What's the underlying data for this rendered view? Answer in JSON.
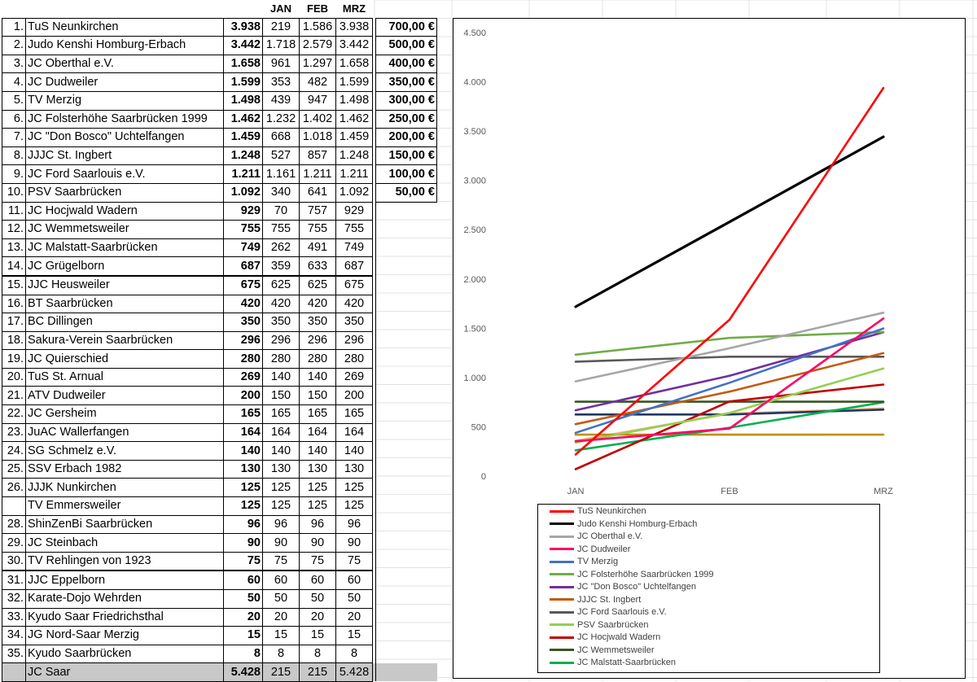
{
  "table": {
    "header": {
      "jan": "JAN",
      "feb": "FEB",
      "mrz": "MRZ"
    },
    "rows": [
      {
        "rank": "1.",
        "club": "TuS Neunkirchen",
        "total": "3.938",
        "jan": "219",
        "feb": "1.586",
        "mrz": "3.938",
        "prize": "700,00 €"
      },
      {
        "rank": "2.",
        "club": "Judo Kenshi Homburg-Erbach",
        "total": "3.442",
        "jan": "1.718",
        "feb": "2.579",
        "mrz": "3.442",
        "prize": "500,00 €"
      },
      {
        "rank": "3.",
        "club": "JC Oberthal e.V.",
        "total": "1.658",
        "jan": "961",
        "feb": "1.297",
        "mrz": "1.658",
        "prize": "400,00 €"
      },
      {
        "rank": "4.",
        "club": "JC Dudweiler",
        "total": "1.599",
        "jan": "353",
        "feb": "482",
        "mrz": "1.599",
        "prize": "350,00 €"
      },
      {
        "rank": "5.",
        "club": "TV Merzig",
        "total": "1.498",
        "jan": "439",
        "feb": "947",
        "mrz": "1.498",
        "prize": "300,00 €"
      },
      {
        "rank": "6.",
        "club": "JC Folsterhöhe Saarbrücken 1999",
        "total": "1.462",
        "jan": "1.232",
        "feb": "1.402",
        "mrz": "1.462",
        "prize": "250,00 €"
      },
      {
        "rank": "7.",
        "club": "JC \"Don Bosco\" Uchtelfangen",
        "total": "1.459",
        "jan": "668",
        "feb": "1.018",
        "mrz": "1.459",
        "prize": "200,00 €"
      },
      {
        "rank": "8.",
        "club": "JJJC St. Ingbert",
        "total": "1.248",
        "jan": "527",
        "feb": "857",
        "mrz": "1.248",
        "prize": "150,00 €"
      },
      {
        "rank": "9.",
        "club": "JC Ford Saarlouis e.V.",
        "total": "1.211",
        "jan": "1.161",
        "feb": "1.211",
        "mrz": "1.211",
        "prize": "100,00 €"
      },
      {
        "rank": "10.",
        "club": "PSV Saarbrücken",
        "total": "1.092",
        "jan": "340",
        "feb": "641",
        "mrz": "1.092",
        "prize": "50,00 €"
      },
      {
        "rank": "11.",
        "club": "JC Hocjwald Wadern",
        "total": "929",
        "jan": "70",
        "feb": "757",
        "mrz": "929",
        "prize": ""
      },
      {
        "rank": "12.",
        "club": "JC Wemmetsweiler",
        "total": "755",
        "jan": "755",
        "feb": "755",
        "mrz": "755",
        "prize": ""
      },
      {
        "rank": "13.",
        "club": "JC Malstatt-Saarbrücken",
        "total": "749",
        "jan": "262",
        "feb": "491",
        "mrz": "749",
        "prize": ""
      },
      {
        "rank": "14.",
        "club": "JC Grügelborn",
        "total": "687",
        "jan": "359",
        "feb": "633",
        "mrz": "687",
        "prize": ""
      },
      {
        "rank": "15.",
        "club": "JJC Heusweiler",
        "total": "675",
        "jan": "625",
        "feb": "625",
        "mrz": "675",
        "prize": ""
      },
      {
        "rank": "16.",
        "club": "BT Saarbrücken",
        "total": "420",
        "jan": "420",
        "feb": "420",
        "mrz": "420",
        "prize": ""
      },
      {
        "rank": "17.",
        "club": "BC Dillingen",
        "total": "350",
        "jan": "350",
        "feb": "350",
        "mrz": "350",
        "prize": ""
      },
      {
        "rank": "18.",
        "club": "Sakura-Verein Saarbrücken",
        "total": "296",
        "jan": "296",
        "feb": "296",
        "mrz": "296",
        "prize": ""
      },
      {
        "rank": "19.",
        "club": "JC Quierschied",
        "total": "280",
        "jan": "280",
        "feb": "280",
        "mrz": "280",
        "prize": ""
      },
      {
        "rank": "20.",
        "club": "TuS St. Arnual",
        "total": "269",
        "jan": "140",
        "feb": "140",
        "mrz": "269",
        "prize": ""
      },
      {
        "rank": "21.",
        "club": "ATV Dudweiler",
        "total": "200",
        "jan": "150",
        "feb": "150",
        "mrz": "200",
        "prize": ""
      },
      {
        "rank": "22.",
        "club": "JC Gersheim",
        "total": "165",
        "jan": "165",
        "feb": "165",
        "mrz": "165",
        "prize": ""
      },
      {
        "rank": "23.",
        "club": "JuAC Wallerfangen",
        "total": "164",
        "jan": "164",
        "feb": "164",
        "mrz": "164",
        "prize": ""
      },
      {
        "rank": "24.",
        "club": "SG Schmelz e.V.",
        "total": "140",
        "jan": "140",
        "feb": "140",
        "mrz": "140",
        "prize": ""
      },
      {
        "rank": "25.",
        "club": "SSV Erbach 1982",
        "total": "130",
        "jan": "130",
        "feb": "130",
        "mrz": "130",
        "prize": ""
      },
      {
        "rank": "26.",
        "club": "JJJK Nunkirchen",
        "total": "125",
        "jan": "125",
        "feb": "125",
        "mrz": "125",
        "prize": ""
      },
      {
        "rank": "",
        "club": "TV Emmersweiler",
        "total": "125",
        "jan": "125",
        "feb": "125",
        "mrz": "125",
        "prize": ""
      },
      {
        "rank": "28.",
        "club": "ShinZenBi Saarbrücken",
        "total": "96",
        "jan": "96",
        "feb": "96",
        "mrz": "96",
        "prize": ""
      },
      {
        "rank": "29.",
        "club": "JC Steinbach",
        "total": "90",
        "jan": "90",
        "feb": "90",
        "mrz": "90",
        "prize": ""
      },
      {
        "rank": "30.",
        "club": "TV Rehlingen von 1923",
        "total": "75",
        "jan": "75",
        "feb": "75",
        "mrz": "75",
        "prize": ""
      },
      {
        "rank": "31.",
        "club": "JJC Eppelborn",
        "total": "60",
        "jan": "60",
        "feb": "60",
        "mrz": "60",
        "prize": ""
      },
      {
        "rank": "32.",
        "club": "Karate-Dojo Wehrden",
        "total": "50",
        "jan": "50",
        "feb": "50",
        "mrz": "50",
        "prize": ""
      },
      {
        "rank": "33.",
        "club": "Kyudo Saar Friedrichsthal",
        "total": "20",
        "jan": "20",
        "feb": "20",
        "mrz": "20",
        "prize": ""
      },
      {
        "rank": "34.",
        "club": "JG Nord-Saar Merzig",
        "total": "15",
        "jan": "15",
        "feb": "15",
        "mrz": "15",
        "prize": ""
      },
      {
        "rank": "35.",
        "club": "Kyudo Saarbrücken",
        "total": "8",
        "jan": "8",
        "feb": "8",
        "mrz": "8",
        "prize": ""
      },
      {
        "rank": "",
        "club": "JC Saar",
        "total": "5.428",
        "jan": "215",
        "feb": "215",
        "mrz": "5.428",
        "prize": ""
      }
    ]
  },
  "chart_data": {
    "type": "line",
    "x": [
      "JAN",
      "FEB",
      "MRZ"
    ],
    "ylim": [
      0,
      4500
    ],
    "yticks": [
      0,
      500,
      1000,
      1500,
      2000,
      2500,
      3000,
      3500,
      4000,
      4500
    ],
    "ytick_labels": [
      "0",
      "500",
      "1.000",
      "1.500",
      "2.000",
      "2.500",
      "3.000",
      "3.500",
      "4.000",
      "4.500"
    ],
    "legend_position": "bottom",
    "series": [
      {
        "name": "TuS Neunkirchen",
        "color": "#ff0000",
        "values": [
          219,
          1586,
          3938
        ]
      },
      {
        "name": "Judo Kenshi Homburg-Erbach",
        "color": "#000000",
        "values": [
          1718,
          2579,
          3442
        ]
      },
      {
        "name": "JC Oberthal e.V.",
        "color": "#a6a6a6",
        "values": [
          961,
          1297,
          1658
        ]
      },
      {
        "name": "JC Dudweiler",
        "color": "#ff0066",
        "values": [
          353,
          482,
          1599
        ]
      },
      {
        "name": "TV Merzig",
        "color": "#4472c4",
        "values": [
          439,
          947,
          1498
        ]
      },
      {
        "name": "JC Folsterhöhe Saarbrücken 1999",
        "color": "#70ad47",
        "values": [
          1232,
          1402,
          1462
        ]
      },
      {
        "name": "JC \"Don Bosco\" Uchtelfangen",
        "color": "#7030a0",
        "values": [
          668,
          1018,
          1459
        ]
      },
      {
        "name": "JJJC St. Ingbert",
        "color": "#c55a11",
        "values": [
          527,
          857,
          1248
        ]
      },
      {
        "name": "JC Ford Saarlouis e.V.",
        "color": "#595959",
        "values": [
          1161,
          1211,
          1211
        ]
      },
      {
        "name": "PSV Saarbrücken",
        "color": "#92d050",
        "values": [
          340,
          641,
          1092
        ]
      },
      {
        "name": "JC Hocjwald Wadern",
        "color": "#c00000",
        "values": [
          70,
          757,
          929
        ]
      },
      {
        "name": "JC Wemmetsweiler",
        "color": "#375623",
        "values": [
          755,
          755,
          755
        ]
      },
      {
        "name": "JC Malstatt-Saarbrücken",
        "color": "#00b050",
        "values": [
          262,
          491,
          749
        ]
      }
    ],
    "extra_series": [
      {
        "color": "#f4b183",
        "values": [
          359,
          633,
          687
        ]
      },
      {
        "color": "#1f3864",
        "values": [
          625,
          625,
          675
        ]
      },
      {
        "color": "#c09000",
        "values": [
          420,
          420,
          420
        ]
      }
    ]
  }
}
